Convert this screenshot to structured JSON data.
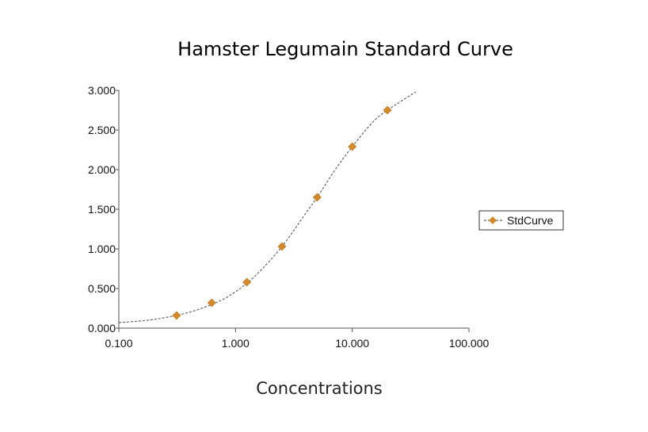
{
  "chart_data": {
    "type": "scatter",
    "title": "Hamster Legumain Standard Curve",
    "xlabel": "Concentrations",
    "ylabel": "",
    "x_scale": "log",
    "xlim": [
      0.1,
      100
    ],
    "ylim": [
      0,
      3
    ],
    "x_ticks": [
      "0.100",
      "1.000",
      "10.000",
      "100.000"
    ],
    "x_tick_values": [
      0.1,
      1,
      10,
      100
    ],
    "y_ticks": [
      "0.000",
      "0.500",
      "1.000",
      "1.500",
      "2.000",
      "2.500",
      "3.000"
    ],
    "y_tick_values": [
      0,
      0.5,
      1,
      1.5,
      2,
      2.5,
      3
    ],
    "grid": false,
    "legend_position": "right",
    "series": [
      {
        "name": "StdCurve",
        "color": "#D4892A",
        "marker": "diamond",
        "x": [
          0.3125,
          0.625,
          1.25,
          2.5,
          5,
          10,
          20
        ],
        "y": [
          0.16,
          0.32,
          0.58,
          1.03,
          1.65,
          2.29,
          2.75
        ]
      }
    ],
    "fit_curve": {
      "style": "dashed",
      "color": "#666666",
      "x": [
        0.1,
        0.2,
        0.4,
        0.7,
        1,
        1.5,
        2.5,
        4,
        5,
        7,
        10,
        15,
        20,
        35
      ],
      "y": [
        0.07,
        0.11,
        0.2,
        0.33,
        0.46,
        0.67,
        1.03,
        1.45,
        1.65,
        1.98,
        2.29,
        2.6,
        2.75,
        2.98
      ]
    }
  }
}
